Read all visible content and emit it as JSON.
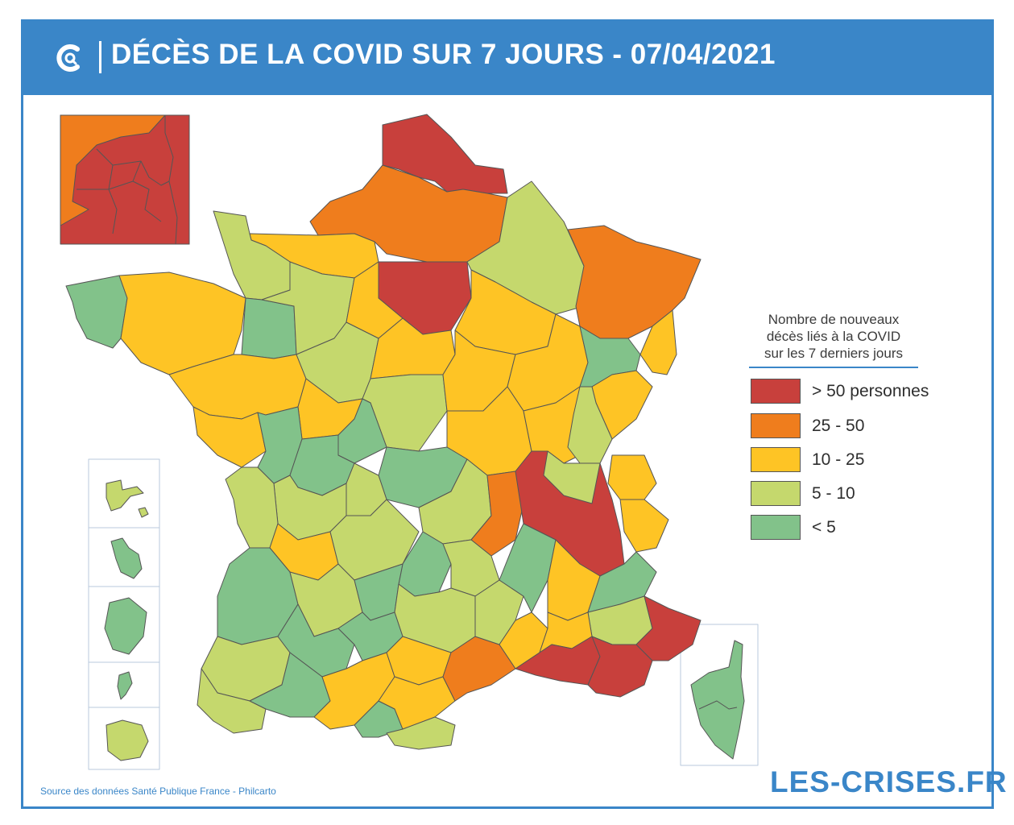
{
  "header": {
    "title": "DÉCÈS DE LA COVID SUR 7 JOURS - 07/04/2021"
  },
  "legend": {
    "title_lines": [
      "Nombre de nouveaux",
      "décès liés à la COVID",
      "sur les 7 derniers jours"
    ],
    "items": [
      {
        "label": "> 50 personnes",
        "color": "#c8403c"
      },
      {
        "label": "25 - 50",
        "color": "#ef7d1d"
      },
      {
        "label": "10 - 25",
        "color": "#fec425"
      },
      {
        "label": "5 - 10",
        "color": "#c5d86d"
      },
      {
        "label": "< 5",
        "color": "#82c28a"
      }
    ]
  },
  "footer": {
    "source": "Source des données Santé Publique France - Philcarto",
    "brand": "LES-CRISES.FR"
  },
  "colors": {
    "accent": "#3a86c8",
    "very_high": "#c8403c",
    "high": "#ef7d1d",
    "medium": "#fec425",
    "low": "#c5d86d",
    "very_low": "#82c28a"
  }
}
